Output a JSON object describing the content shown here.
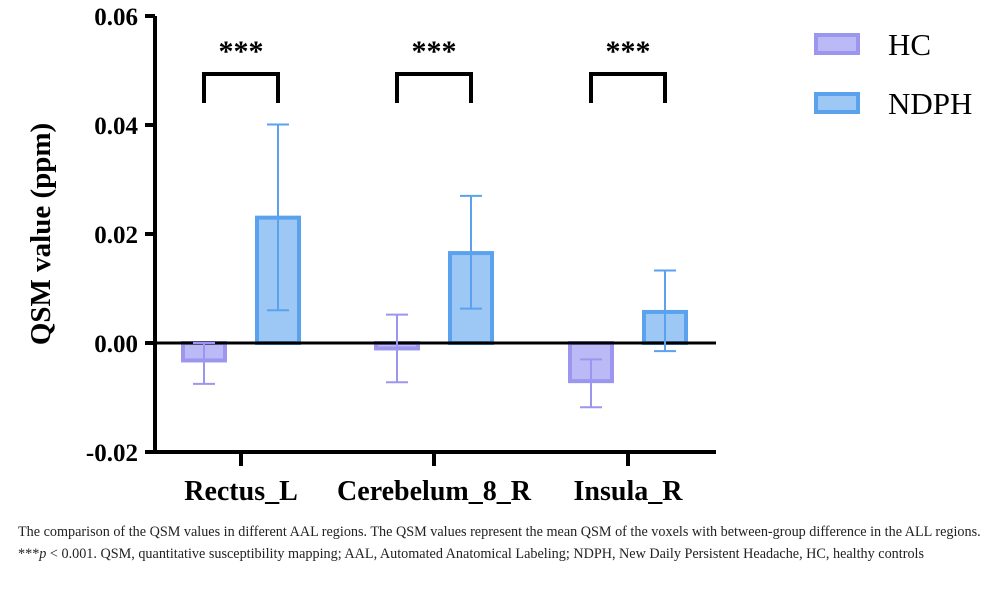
{
  "chart_data": {
    "type": "bar",
    "ylabel": "QSM value (ppm)",
    "ylim": [
      -0.02,
      0.06
    ],
    "yticks": [
      -0.02,
      0.0,
      0.02,
      0.04,
      0.06
    ],
    "ytick_labels": [
      "-0.02",
      "0.00",
      "0.02",
      "0.04",
      "0.06"
    ],
    "categories": [
      "Rectus_L",
      "Cerebelum_8_R",
      "Insula_R"
    ],
    "series": [
      {
        "name": "HC",
        "fill": "#bcb9f7",
        "edge": "#9c96ee",
        "values": [
          -0.0032,
          -0.001,
          -0.007
        ],
        "error_low": [
          -0.0075,
          -0.0072,
          -0.0118
        ],
        "error_high": [
          0.0,
          0.0052,
          -0.003
        ]
      },
      {
        "name": "NDPH",
        "fill": "#9dc8f5",
        "edge": "#5aa2ee",
        "values": [
          0.023,
          0.0165,
          0.0057
        ],
        "error_low": [
          0.006,
          0.0063,
          -0.0015
        ],
        "error_high": [
          0.0401,
          0.027,
          0.0133
        ]
      }
    ],
    "significance": [
      "***",
      "***",
      "***"
    ],
    "legend_position": "top-right"
  },
  "caption": {
    "text_before": "The comparison of the QSM values in different AAL regions. The QSM values represent the mean QSM of the voxels with between-group difference in the ALL regions. ***",
    "p_symbol": "p",
    "text_after": " < 0.001. QSM, quantitative susceptibility mapping; AAL, Automated Anatomical Labeling; NDPH, New Daily Persistent Headache, HC, healthy controls"
  }
}
